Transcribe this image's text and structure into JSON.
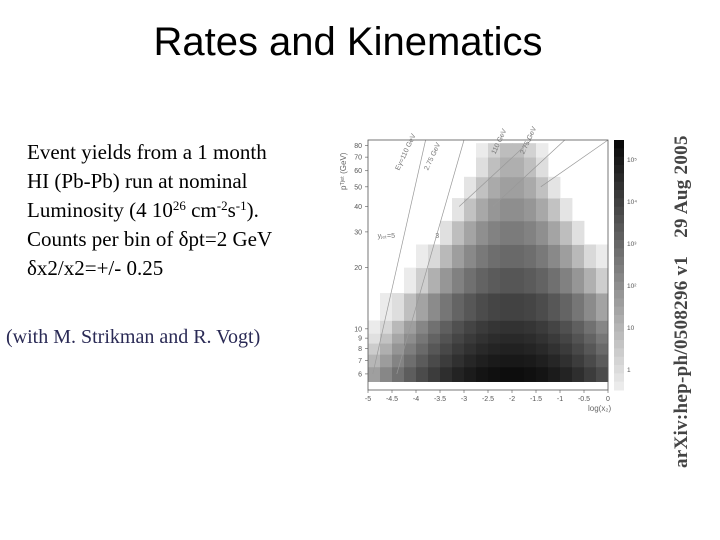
{
  "slide": {
    "title": "Rates and Kinematics",
    "credit": "(with M. Strikman and R. Vogt)"
  },
  "body": {
    "line1": "Event yields from a 1 month",
    "line2": "HI (Pb-Pb) run at nominal",
    "line3_a": "Luminosity (4 10",
    "line3_exp1": "26",
    "line3_b": " cm",
    "line3_exp2": "-2",
    "line3_c": "s",
    "line3_exp3": "-1",
    "line3_d": ").",
    "line4": "Counts per bin of δpt=2 GeV",
    "line5": "δx2/x2=+/- 0.25"
  },
  "arxiv": {
    "id": "arXiv:hep-ph/0508296 v1",
    "date": "29 Aug 2005"
  },
  "chart_data": {
    "type": "heatmap",
    "xlabel": "log(x₂)",
    "ylabel": "pᵀʲᵉᵗ (GeV)",
    "x_ticks": [
      "-5",
      "-4.5",
      "-4",
      "-3.5",
      "-3",
      "-2.5",
      "-2",
      "-1.5",
      "-1",
      "-0.5",
      "0"
    ],
    "y_ticks": [
      "6",
      "7",
      "8",
      "9",
      "10",
      "20",
      "30",
      "40",
      "50",
      "60",
      "70",
      "80"
    ],
    "xlim": [
      -5,
      0
    ],
    "ylim": [
      5,
      85
    ],
    "y_scale": "log",
    "colorbar_ticks": [
      "10⁵",
      "10⁴",
      "10³",
      "10²",
      "10",
      "1"
    ],
    "bins_pt": [
      5.5,
      6.5,
      7.5,
      8.5,
      9.5,
      11,
      15,
      20,
      26,
      34,
      44,
      56,
      70,
      82
    ],
    "bins_x": [
      -5,
      -4.75,
      -4.5,
      -4.25,
      -4,
      -3.75,
      -3.5,
      -3.25,
      -3,
      -2.75,
      -2.5,
      -2.25,
      -2,
      -1.75,
      -1.5,
      -1.25,
      -1,
      -0.75,
      -0.5,
      -0.25,
      0
    ],
    "annotations": [
      "Eγ=110 GeV",
      "2.75 GeV",
      "110 GeV",
      "2.75 GeV",
      "yⱼₑₜ=5",
      "3"
    ]
  }
}
